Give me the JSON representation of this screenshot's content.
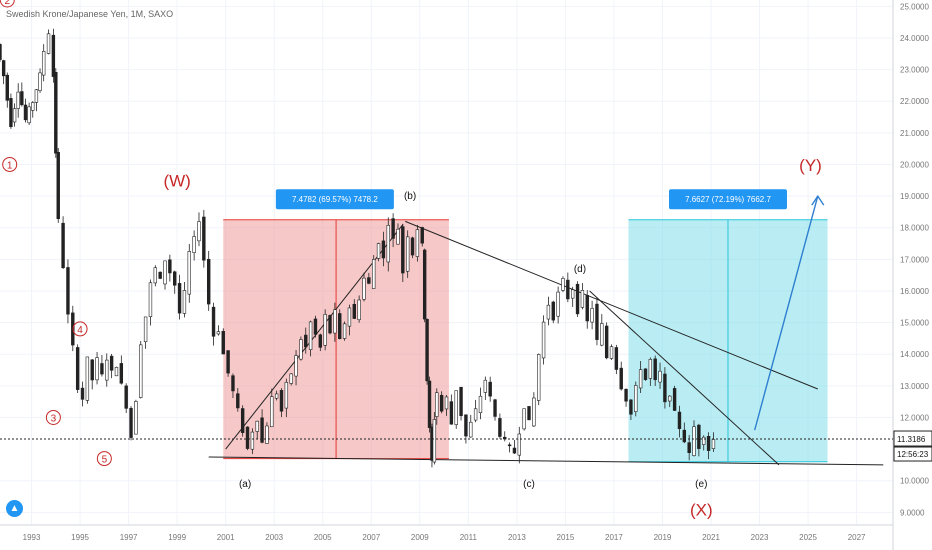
{
  "header": {
    "symbol_title": "Swedish Krone/Japanese Yen, 1M, SAXO"
  },
  "price_axis": {
    "ticks": [
      "25.0000",
      "24.0000",
      "23.0000",
      "22.0000",
      "21.0000",
      "20.0000",
      "19.0000",
      "18.0000",
      "17.0000",
      "16.0000",
      "15.0000",
      "14.0000",
      "13.0000",
      "12.0000",
      "10.0000",
      "9.0000"
    ],
    "last_price": "11.3186",
    "countdown": "12:56:23"
  },
  "time_axis": {
    "ticks": [
      "1993",
      "1995",
      "1997",
      "1999",
      "2001",
      "2003",
      "2005",
      "2007",
      "2009",
      "2011",
      "2013",
      "2015",
      "2017",
      "2019",
      "2021",
      "2023",
      "2025",
      "2027"
    ]
  },
  "chart_data": {
    "type": "candlestick",
    "title": "Swedish Krone/Japanese Yen, 1M, SAXO",
    "x_range": [
      1991.7,
      2028.5
    ],
    "y_range": [
      8.6,
      25.2
    ],
    "price_path": [
      [
        1991.7,
        23.8
      ],
      [
        1992.0,
        22.8
      ],
      [
        1992.3,
        21.3
      ],
      [
        1992.6,
        22.4
      ],
      [
        1992.9,
        21.4
      ],
      [
        1993.2,
        22.0
      ],
      [
        1993.5,
        22.8
      ],
      [
        1993.7,
        23.6
      ],
      [
        1993.9,
        24.2
      ],
      [
        1994.0,
        22.8
      ],
      [
        1994.1,
        20.4
      ],
      [
        1994.3,
        18.2
      ],
      [
        1994.5,
        16.8
      ],
      [
        1994.7,
        15.2
      ],
      [
        1994.9,
        14.2
      ],
      [
        1995.1,
        13.0
      ],
      [
        1995.3,
        12.6
      ],
      [
        1995.5,
        13.8
      ],
      [
        1995.7,
        13.2
      ],
      [
        1995.9,
        13.8
      ],
      [
        1996.1,
        13.3
      ],
      [
        1996.3,
        13.9
      ],
      [
        1996.5,
        13.4
      ],
      [
        1996.7,
        13.7
      ],
      [
        1996.9,
        13.0
      ],
      [
        1997.1,
        12.4
      ],
      [
        1997.3,
        11.4
      ],
      [
        1997.5,
        12.6
      ],
      [
        1997.7,
        14.4
      ],
      [
        1997.9,
        15.2
      ],
      [
        1998.1,
        16.2
      ],
      [
        1998.3,
        16.7
      ],
      [
        1998.5,
        16.3
      ],
      [
        1998.7,
        17.0
      ],
      [
        1998.9,
        16.6
      ],
      [
        1999.1,
        16.2
      ],
      [
        1999.3,
        15.3
      ],
      [
        1999.5,
        15.9
      ],
      [
        1999.7,
        17.2
      ],
      [
        1999.9,
        17.6
      ],
      [
        2000.1,
        18.3
      ],
      [
        2000.3,
        17.0
      ],
      [
        2000.5,
        15.6
      ],
      [
        2000.7,
        14.6
      ],
      [
        2000.9,
        14.8
      ],
      [
        2001.1,
        14.0
      ],
      [
        2001.3,
        13.4
      ],
      [
        2001.5,
        12.8
      ],
      [
        2001.7,
        12.2
      ],
      [
        2001.9,
        11.6
      ],
      [
        2002.1,
        11.0
      ],
      [
        2002.3,
        11.6
      ],
      [
        2002.5,
        12.0
      ],
      [
        2002.7,
        11.2
      ],
      [
        2002.9,
        11.8
      ],
      [
        2003.1,
        12.6
      ],
      [
        2003.3,
        12.8
      ],
      [
        2003.5,
        12.2
      ],
      [
        2003.7,
        13.0
      ],
      [
        2003.9,
        13.4
      ],
      [
        2004.1,
        13.9
      ],
      [
        2004.3,
        14.5
      ],
      [
        2004.5,
        14.2
      ],
      [
        2004.7,
        15.0
      ],
      [
        2004.9,
        14.6
      ],
      [
        2005.1,
        14.2
      ],
      [
        2005.3,
        15.2
      ],
      [
        2005.5,
        14.7
      ],
      [
        2005.7,
        15.3
      ],
      [
        2005.9,
        14.4
      ],
      [
        2006.1,
        15.0
      ],
      [
        2006.3,
        15.5
      ],
      [
        2006.5,
        15.1
      ],
      [
        2006.7,
        15.8
      ],
      [
        2006.9,
        16.4
      ],
      [
        2007.1,
        16.2
      ],
      [
        2007.3,
        17.0
      ],
      [
        2007.5,
        17.6
      ],
      [
        2007.7,
        17.0
      ],
      [
        2007.9,
        18.2
      ],
      [
        2008.1,
        17.6
      ],
      [
        2008.3,
        18.0
      ],
      [
        2008.5,
        16.6
      ],
      [
        2008.7,
        17.8
      ],
      [
        2008.9,
        17.2
      ],
      [
        2009.1,
        18.0
      ],
      [
        2009.2,
        17.4
      ],
      [
        2009.3,
        15.2
      ],
      [
        2009.4,
        13.2
      ],
      [
        2009.5,
        11.6
      ],
      [
        2009.6,
        10.6
      ],
      [
        2009.7,
        12.0
      ],
      [
        2009.9,
        12.8
      ],
      [
        2010.1,
        12.2
      ],
      [
        2010.3,
        12.6
      ],
      [
        2010.5,
        11.8
      ],
      [
        2010.7,
        12.9
      ],
      [
        2010.9,
        12.1
      ],
      [
        2011.1,
        11.4
      ],
      [
        2011.3,
        11.8
      ],
      [
        2011.5,
        12.2
      ],
      [
        2011.7,
        12.7
      ],
      [
        2011.9,
        13.2
      ],
      [
        2012.1,
        12.6
      ],
      [
        2012.3,
        12.0
      ],
      [
        2012.5,
        11.5
      ],
      [
        2012.7,
        11.2
      ],
      [
        2012.9,
        11.0
      ],
      [
        2013.1,
        10.9
      ],
      [
        2013.3,
        11.6
      ],
      [
        2013.5,
        12.4
      ],
      [
        2013.7,
        11.8
      ],
      [
        2013.9,
        12.6
      ],
      [
        2014.1,
        14.0
      ],
      [
        2014.3,
        15.0
      ],
      [
        2014.5,
        15.6
      ],
      [
        2014.7,
        15.2
      ],
      [
        2014.9,
        15.9
      ],
      [
        2015.1,
        16.3
      ],
      [
        2015.3,
        15.8
      ],
      [
        2015.5,
        16.1
      ],
      [
        2015.7,
        15.4
      ],
      [
        2015.9,
        15.9
      ],
      [
        2016.1,
        15.0
      ],
      [
        2016.3,
        15.5
      ],
      [
        2016.5,
        14.4
      ],
      [
        2016.7,
        14.9
      ],
      [
        2016.9,
        13.9
      ],
      [
        2017.1,
        14.3
      ],
      [
        2017.3,
        13.6
      ],
      [
        2017.5,
        13.0
      ],
      [
        2017.7,
        12.6
      ],
      [
        2017.9,
        12.1
      ],
      [
        2018.1,
        12.9
      ],
      [
        2018.3,
        13.6
      ],
      [
        2018.5,
        13.2
      ],
      [
        2018.7,
        13.8
      ],
      [
        2018.9,
        13.1
      ],
      [
        2019.1,
        13.4
      ],
      [
        2019.3,
        12.4
      ],
      [
        2019.5,
        12.8
      ],
      [
        2019.7,
        12.1
      ],
      [
        2019.9,
        11.7
      ],
      [
        2020.1,
        11.3
      ],
      [
        2020.3,
        10.8
      ],
      [
        2020.5,
        11.7
      ],
      [
        2020.7,
        11.1
      ],
      [
        2020.9,
        11.5
      ],
      [
        2021.1,
        11.0
      ],
      [
        2021.3,
        11.3
      ]
    ],
    "labels": [
      {
        "text": "2",
        "x": 1992.0,
        "y": 25.2,
        "color": "#c62828",
        "circled": true
      },
      {
        "text": "1",
        "x": 1992.1,
        "y": 20.0,
        "color": "#c62828",
        "circled": true
      },
      {
        "text": "3",
        "x": 1993.9,
        "y": 12.0,
        "color": "#c62828",
        "circled": true
      },
      {
        "text": "4",
        "x": 1995.0,
        "y": 14.8,
        "color": "#c62828",
        "circled": true
      },
      {
        "text": "5",
        "x": 1996.0,
        "y": 10.7,
        "color": "#c62828",
        "circled": true
      },
      {
        "text": "(W)",
        "x": 1999.0,
        "y": 19.3,
        "color": "#c62828",
        "big": true
      },
      {
        "text": "(b)",
        "x": 2008.6,
        "y": 18.9,
        "color": "#111111"
      },
      {
        "text": "(a)",
        "x": 2001.8,
        "y": 9.8,
        "color": "#111111"
      },
      {
        "text": "(c)",
        "x": 2013.5,
        "y": 9.8,
        "color": "#111111"
      },
      {
        "text": "(d)",
        "x": 2015.6,
        "y": 16.6,
        "color": "#111111"
      },
      {
        "text": "(e)",
        "x": 2020.6,
        "y": 9.8,
        "color": "#111111"
      },
      {
        "text": "(X)",
        "x": 2020.6,
        "y": 8.9,
        "color": "#c62828",
        "big": true
      },
      {
        "text": "(Y)",
        "x": 2025.1,
        "y": 19.8,
        "color": "#c62828",
        "big": true
      }
    ],
    "projection_boxes": [
      {
        "x0": 2000.9,
        "x1": 2010.2,
        "y0": 10.7,
        "y1": 18.25,
        "color": "#ef9a9a",
        "line_color": "#e53935",
        "label": "7.4782 (69.57%) 7478.2",
        "label_x": 2005.5,
        "label_y": 18.9
      },
      {
        "x0": 2017.6,
        "x1": 2025.8,
        "y0": 10.6,
        "y1": 18.25,
        "color": "#80deea",
        "line_color": "#26c6da",
        "label": "7.6627 (72.19%) 7662.7",
        "label_x": 2021.7,
        "label_y": 18.9
      }
    ],
    "trendlines": [
      [
        2000.3,
        10.75,
        2028.1,
        10.5
      ],
      [
        2008.4,
        18.2,
        2025.4,
        12.9
      ],
      [
        2016.0,
        16.0,
        2023.8,
        10.5
      ],
      [
        2001.0,
        11.0,
        2008.3,
        18.1
      ]
    ],
    "projection_arrow": [
      2022.8,
      11.6,
      2025.4,
      19.0
    ],
    "last_price_value": 11.3186
  }
}
